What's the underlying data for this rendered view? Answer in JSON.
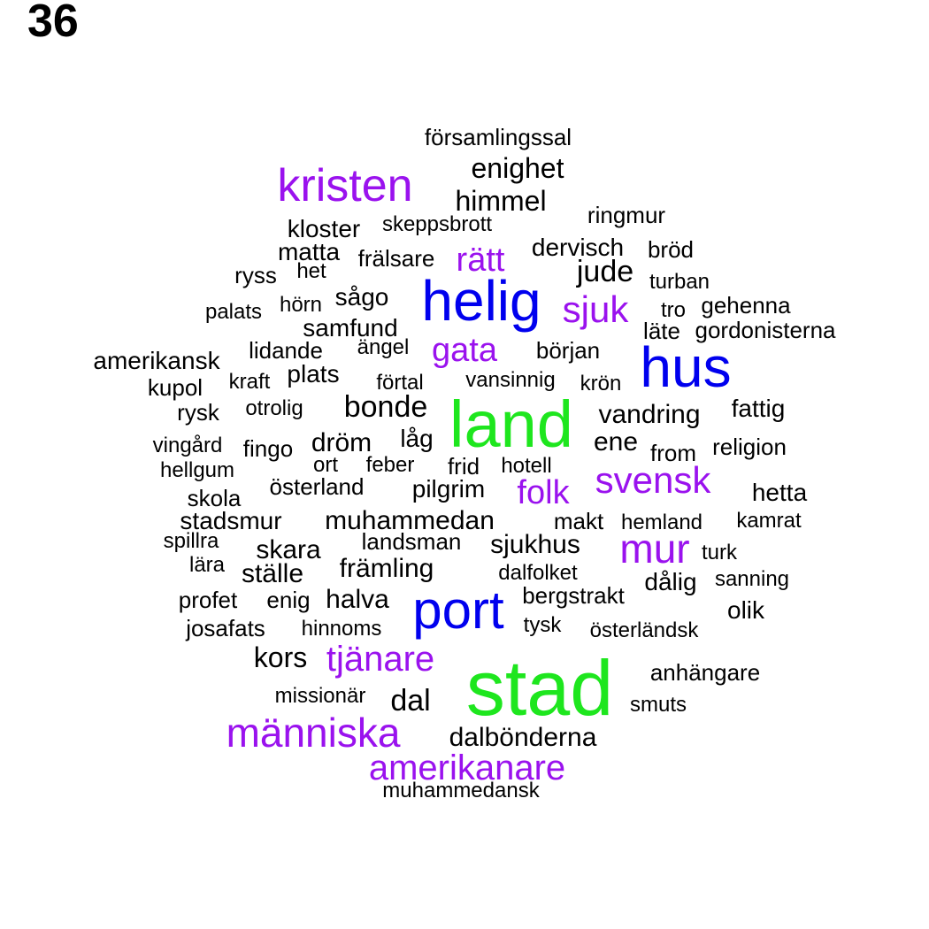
{
  "number": "36",
  "colors": {
    "green": "#1EE61E",
    "blue": "#0000EE",
    "purple": "#9A12EE",
    "black": "#000000"
  },
  "words": [
    {
      "text": "stad",
      "color": "green"
    },
    {
      "text": "land",
      "color": "green"
    },
    {
      "text": "helig",
      "color": "blue"
    },
    {
      "text": "hus",
      "color": "blue"
    },
    {
      "text": "port",
      "color": "blue"
    },
    {
      "text": "kristen",
      "color": "purple"
    },
    {
      "text": "människa",
      "color": "purple"
    },
    {
      "text": "mur",
      "color": "purple"
    },
    {
      "text": "sjuk",
      "color": "purple"
    },
    {
      "text": "svensk",
      "color": "purple"
    },
    {
      "text": "amerikanare",
      "color": "purple"
    },
    {
      "text": "tjänare",
      "color": "purple"
    },
    {
      "text": "folk",
      "color": "purple"
    },
    {
      "text": "rätt",
      "color": "purple"
    },
    {
      "text": "gata",
      "color": "purple"
    },
    {
      "text": "församlingssal",
      "color": "black"
    },
    {
      "text": "enighet",
      "color": "black"
    },
    {
      "text": "himmel",
      "color": "black"
    },
    {
      "text": "ringmur",
      "color": "black"
    },
    {
      "text": "kloster",
      "color": "black"
    },
    {
      "text": "skeppsbrott",
      "color": "black"
    },
    {
      "text": "matta",
      "color": "black"
    },
    {
      "text": "frälsare",
      "color": "black"
    },
    {
      "text": "dervisch",
      "color": "black"
    },
    {
      "text": "bröd",
      "color": "black"
    },
    {
      "text": "jude",
      "color": "black"
    },
    {
      "text": "ryss",
      "color": "black"
    },
    {
      "text": "het",
      "color": "black"
    },
    {
      "text": "turban",
      "color": "black"
    },
    {
      "text": "sågo",
      "color": "black"
    },
    {
      "text": "hörn",
      "color": "black"
    },
    {
      "text": "palats",
      "color": "black"
    },
    {
      "text": "tro",
      "color": "black"
    },
    {
      "text": "gehenna",
      "color": "black"
    },
    {
      "text": "samfund",
      "color": "black"
    },
    {
      "text": "läte",
      "color": "black"
    },
    {
      "text": "gordonisterna",
      "color": "black"
    },
    {
      "text": "lidande",
      "color": "black"
    },
    {
      "text": "ängel",
      "color": "black"
    },
    {
      "text": "början",
      "color": "black"
    },
    {
      "text": "amerikansk",
      "color": "black"
    },
    {
      "text": "plats",
      "color": "black"
    },
    {
      "text": "kraft",
      "color": "black"
    },
    {
      "text": "förtal",
      "color": "black"
    },
    {
      "text": "vansinnig",
      "color": "black"
    },
    {
      "text": "krön",
      "color": "black"
    },
    {
      "text": "kupol",
      "color": "black"
    },
    {
      "text": "bonde",
      "color": "black"
    },
    {
      "text": "vandring",
      "color": "black"
    },
    {
      "text": "fattig",
      "color": "black"
    },
    {
      "text": "rysk",
      "color": "black"
    },
    {
      "text": "otrolig",
      "color": "black"
    },
    {
      "text": "dröm",
      "color": "black"
    },
    {
      "text": "låg",
      "color": "black"
    },
    {
      "text": "ene",
      "color": "black"
    },
    {
      "text": "vingård",
      "color": "black"
    },
    {
      "text": "fingo",
      "color": "black"
    },
    {
      "text": "from",
      "color": "black"
    },
    {
      "text": "religion",
      "color": "black"
    },
    {
      "text": "hellgum",
      "color": "black"
    },
    {
      "text": "ort",
      "color": "black"
    },
    {
      "text": "feber",
      "color": "black"
    },
    {
      "text": "frid",
      "color": "black"
    },
    {
      "text": "hotell",
      "color": "black"
    },
    {
      "text": "skola",
      "color": "black"
    },
    {
      "text": "österland",
      "color": "black"
    },
    {
      "text": "pilgrim",
      "color": "black"
    },
    {
      "text": "hetta",
      "color": "black"
    },
    {
      "text": "stadsmur",
      "color": "black"
    },
    {
      "text": "muhammedan",
      "color": "black"
    },
    {
      "text": "makt",
      "color": "black"
    },
    {
      "text": "hemland",
      "color": "black"
    },
    {
      "text": "kamrat",
      "color": "black"
    },
    {
      "text": "spillra",
      "color": "black"
    },
    {
      "text": "skara",
      "color": "black"
    },
    {
      "text": "landsman",
      "color": "black"
    },
    {
      "text": "sjukhus",
      "color": "black"
    },
    {
      "text": "lära",
      "color": "black"
    },
    {
      "text": "ställe",
      "color": "black"
    },
    {
      "text": "främling",
      "color": "black"
    },
    {
      "text": "turk",
      "color": "black"
    },
    {
      "text": "dalfolket",
      "color": "black"
    },
    {
      "text": "dålig",
      "color": "black"
    },
    {
      "text": "sanning",
      "color": "black"
    },
    {
      "text": "profet",
      "color": "black"
    },
    {
      "text": "enig",
      "color": "black"
    },
    {
      "text": "halva",
      "color": "black"
    },
    {
      "text": "bergstrakt",
      "color": "black"
    },
    {
      "text": "olik",
      "color": "black"
    },
    {
      "text": "josafats",
      "color": "black"
    },
    {
      "text": "hinnoms",
      "color": "black"
    },
    {
      "text": "tysk",
      "color": "black"
    },
    {
      "text": "österländsk",
      "color": "black"
    },
    {
      "text": "kors",
      "color": "black"
    },
    {
      "text": "anhängare",
      "color": "black"
    },
    {
      "text": "missionär",
      "color": "black"
    },
    {
      "text": "dal",
      "color": "black"
    },
    {
      "text": "smuts",
      "color": "black"
    },
    {
      "text": "dalbönderna",
      "color": "black"
    },
    {
      "text": "muhammedansk",
      "color": "black"
    }
  ]
}
